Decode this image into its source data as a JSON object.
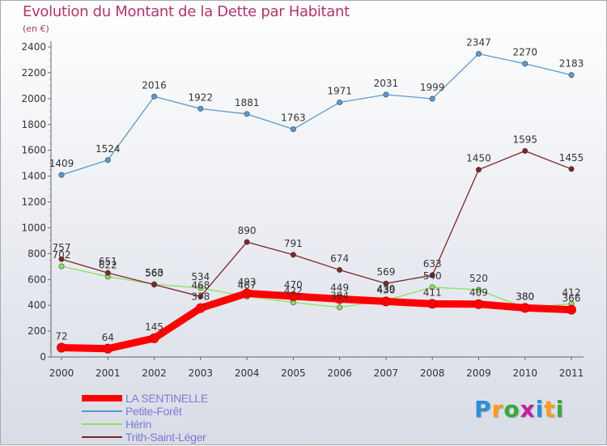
{
  "title": "Evolution du Montant de la Dette par Habitant",
  "subtitle": "(en €)",
  "brand": {
    "text": "Proxiti",
    "letter_colors": [
      "#2a8fd6",
      "#ff9a1a",
      "#3aa83a",
      "#c020a0",
      "#2a8fd6",
      "#ff9a1a",
      "#3aa83a"
    ]
  },
  "chart_data": {
    "type": "line",
    "x": [
      "2000",
      "2001",
      "2002",
      "2003",
      "2004",
      "2005",
      "2006",
      "2007",
      "2008",
      "2009",
      "2010",
      "2011"
    ],
    "ylim": [
      0,
      2500
    ],
    "yticks": [
      0,
      200,
      400,
      600,
      800,
      1000,
      1200,
      1400,
      1600,
      1800,
      2000,
      2200,
      2400
    ],
    "grid": false,
    "legend_position": "bottom-left",
    "series": [
      {
        "name": "LA SENTINELLE",
        "color": "#ff0000",
        "values": [
          72,
          64,
          145,
          378,
          493,
          470,
          449,
          430,
          411,
          409,
          380,
          366
        ]
      },
      {
        "name": "Petite-Forêt",
        "color": "#5a9ad2",
        "values": [
          1409,
          1524,
          2016,
          1922,
          1881,
          1763,
          1971,
          2031,
          1999,
          2347,
          2270,
          2183
        ]
      },
      {
        "name": "Hérin",
        "color": "#8ee05a",
        "values": [
          702,
          622,
          563,
          534,
          467,
          422,
          384,
          439,
          540,
          520,
          380,
          412
        ]
      },
      {
        "name": "Trith-Saint-Léger",
        "color": "#7b2626",
        "values": [
          757,
          651,
          560,
          468,
          890,
          791,
          674,
          569,
          633,
          1450,
          1595,
          1455
        ]
      }
    ]
  }
}
